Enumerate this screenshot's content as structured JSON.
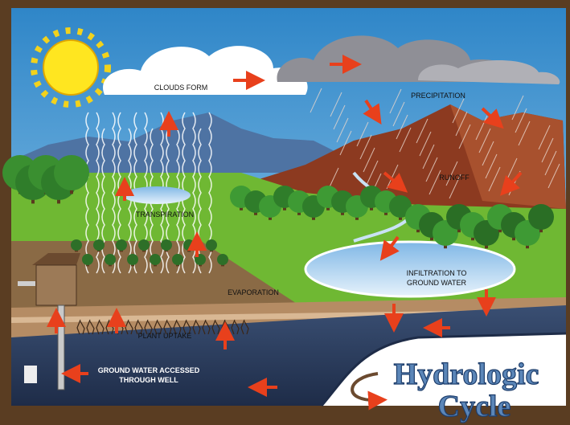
{
  "title": {
    "lines": [
      "Hydrologic",
      "Cycle"
    ]
  },
  "labels": {
    "clouds_form": "CLOUDS FORM",
    "precipitation": "PRECIPITATION",
    "runoff": "RUNOFF",
    "transpiration": "TRANSPIRATION",
    "evaporation": "EVAPORATION",
    "plant_uptake": "PLANT UPTAKE",
    "infiltration": [
      "INFILTRATION TO",
      "GROUND WATER"
    ],
    "well": [
      "GROUND WATER ACCESSED",
      "THROUGH WELL"
    ]
  }
}
